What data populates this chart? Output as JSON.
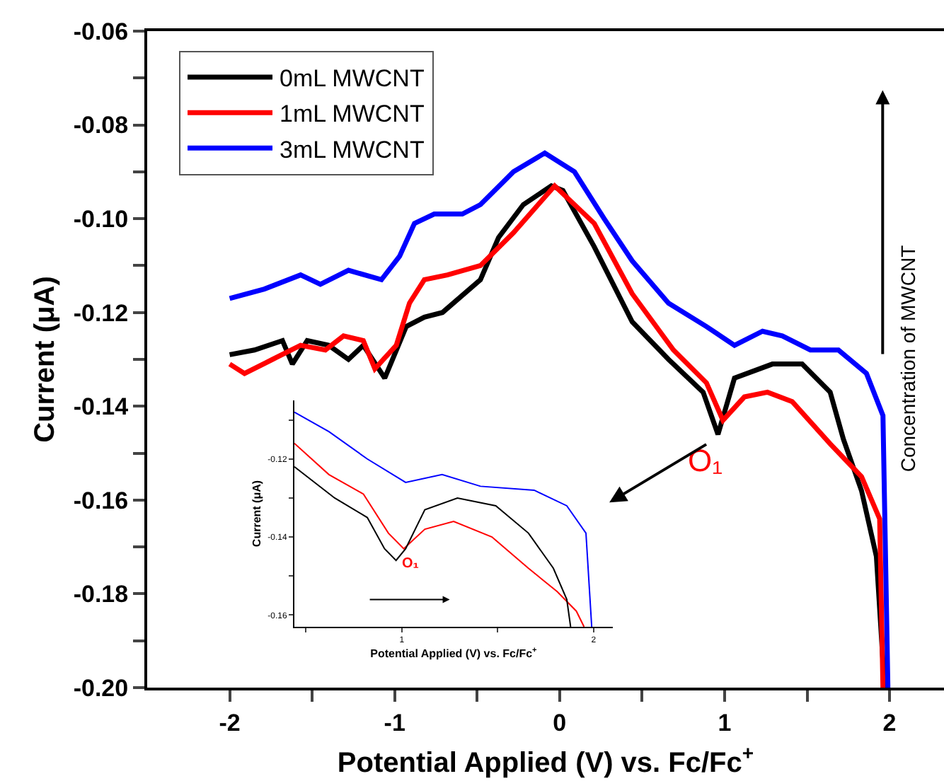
{
  "chart_data": [
    {
      "type": "line",
      "xlabel": "Potential Applied (V) vs. Fc/Fc$^{+}$",
      "ylabel": "Current (μA)",
      "xlim": [
        -2.5,
        2.33
      ],
      "ylim": [
        -0.2,
        -0.06
      ],
      "xticks": [
        -2,
        {
          "value": -1.5,
          "label": null
        },
        -1,
        {
          "value": -0.5,
          "label": null
        },
        0,
        {
          "value": 0.5,
          "label": null
        },
        1,
        {
          "value": 1.5,
          "label": null
        },
        2
      ],
      "yticks": [
        {
          "value": -0.2,
          "label": "-0.20"
        },
        {
          "value": -0.19,
          "label": null
        },
        -0.18,
        {
          "value": -0.17,
          "label": null
        },
        -0.16,
        {
          "value": -0.15,
          "label": null
        },
        -0.14,
        {
          "value": -0.13,
          "label": null
        },
        -0.12,
        {
          "value": -0.11,
          "label": null
        },
        {
          "value": -0.1,
          "label": "-0.10"
        },
        {
          "value": -0.09,
          "label": null
        },
        -0.08,
        {
          "value": -0.07,
          "label": null
        },
        -0.06
      ],
      "grid": false,
      "legend": "top left",
      "line_style": "solid",
      "annotations": [
        "O₁",
        "Concentration of MWCNT"
      ],
      "series": [
        {
          "name": "0mL MWCNT",
          "color": "#000000",
          "x": [
            -2.0,
            -1.85,
            -1.68,
            -1.62,
            -1.53,
            -1.4,
            -1.28,
            -1.19,
            -1.06,
            -0.93,
            -0.82,
            -0.71,
            -0.48,
            -0.37,
            -0.22,
            -0.05,
            0.02,
            0.21,
            0.44,
            0.66,
            0.87,
            0.96,
            1.06,
            1.29,
            1.47,
            1.64,
            1.72,
            1.83,
            1.92,
            1.97
          ],
          "values": [
            -0.129,
            -0.128,
            -0.126,
            -0.131,
            -0.126,
            -0.127,
            -0.13,
            -0.127,
            -0.134,
            -0.123,
            -0.121,
            -0.12,
            -0.113,
            -0.104,
            -0.097,
            -0.093,
            -0.094,
            -0.106,
            -0.122,
            -0.13,
            -0.137,
            -0.146,
            -0.134,
            -0.131,
            -0.131,
            -0.137,
            -0.147,
            -0.158,
            -0.172,
            -0.2
          ]
        },
        {
          "name": "1mL MWCNT",
          "color": "#ff0000",
          "x": [
            -2.0,
            -1.91,
            -1.74,
            -1.57,
            -1.42,
            -1.31,
            -1.19,
            -1.12,
            -0.99,
            -0.91,
            -0.82,
            -0.68,
            -0.48,
            -0.28,
            -0.03,
            0.21,
            0.44,
            0.69,
            0.89,
            0.99,
            1.12,
            1.26,
            1.41,
            1.64,
            1.83,
            1.94,
            1.96
          ],
          "values": [
            -0.131,
            -0.133,
            -0.13,
            -0.127,
            -0.128,
            -0.125,
            -0.126,
            -0.132,
            -0.127,
            -0.118,
            -0.113,
            -0.112,
            -0.11,
            -0.103,
            -0.093,
            -0.101,
            -0.116,
            -0.128,
            -0.135,
            -0.143,
            -0.138,
            -0.137,
            -0.139,
            -0.148,
            -0.155,
            -0.164,
            -0.2
          ]
        },
        {
          "name": "3mL MWCNT",
          "color": "#0000ff",
          "x": [
            -2.0,
            -1.79,
            -1.57,
            -1.45,
            -1.28,
            -1.08,
            -0.97,
            -0.88,
            -0.76,
            -0.59,
            -0.48,
            -0.28,
            -0.09,
            0.09,
            0.27,
            0.44,
            0.66,
            0.89,
            1.06,
            1.23,
            1.35,
            1.52,
            1.69,
            1.86,
            1.96,
            1.99
          ],
          "values": [
            -0.117,
            -0.115,
            -0.112,
            -0.114,
            -0.111,
            -0.113,
            -0.108,
            -0.101,
            -0.099,
            -0.099,
            -0.097,
            -0.09,
            -0.086,
            -0.09,
            -0.1,
            -0.109,
            -0.118,
            -0.123,
            -0.127,
            -0.124,
            -0.125,
            -0.128,
            -0.128,
            -0.133,
            -0.142,
            -0.2
          ]
        }
      ]
    },
    {
      "type": "line",
      "xlabel": "Potential Applied (V) vs. Fc/Fc$^{+}$",
      "ylabel": "Current (μA)",
      "xlim": [
        0.44,
        2.1
      ],
      "ylim": [
        -0.163,
        -0.105
      ],
      "xticks": [
        {
          "value": 0.5,
          "label": null
        },
        1,
        {
          "value": 1.5,
          "label": null
        },
        2
      ],
      "yticks": [
        -0.16,
        {
          "value": -0.15,
          "label": null
        },
        -0.14,
        {
          "value": -0.13,
          "label": null
        },
        -0.12,
        {
          "value": -0.11,
          "label": null
        }
      ],
      "grid": false,
      "legend": false,
      "line_style": "solid",
      "annotations": [
        "O₁"
      ],
      "series": [
        {
          "color": "#0000ff",
          "x": [
            0.44,
            0.62,
            0.82,
            1.02,
            1.21,
            1.41,
            1.69,
            1.86,
            1.96,
            1.99
          ],
          "values": [
            -0.108,
            -0.113,
            -0.12,
            -0.126,
            -0.124,
            -0.127,
            -0.128,
            -0.132,
            -0.139,
            -0.163
          ]
        },
        {
          "color": "#ff0000",
          "x": [
            0.44,
            0.62,
            0.8,
            0.93,
            1.01,
            1.12,
            1.27,
            1.47,
            1.66,
            1.81,
            1.91,
            1.95
          ],
          "values": [
            -0.116,
            -0.124,
            -0.129,
            -0.139,
            -0.143,
            -0.138,
            -0.136,
            -0.14,
            -0.148,
            -0.154,
            -0.159,
            -0.163
          ]
        },
        {
          "color": "#000000",
          "x": [
            0.44,
            0.65,
            0.82,
            0.91,
            0.97,
            1.02,
            1.12,
            1.29,
            1.49,
            1.66,
            1.79,
            1.86,
            1.88
          ],
          "values": [
            -0.122,
            -0.13,
            -0.135,
            -0.143,
            -0.146,
            -0.143,
            -0.133,
            -0.13,
            -0.132,
            -0.139,
            -0.148,
            -0.156,
            -0.163
          ]
        }
      ]
    }
  ]
}
